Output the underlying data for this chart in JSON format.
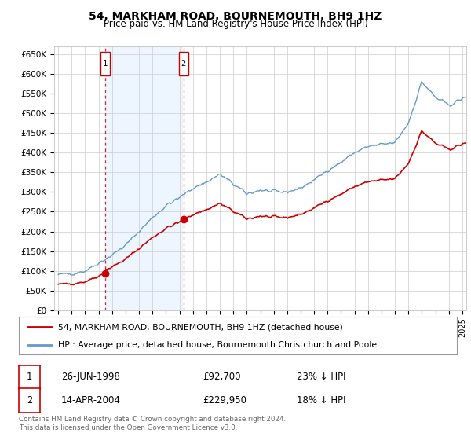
{
  "title": "54, MARKHAM ROAD, BOURNEMOUTH, BH9 1HZ",
  "subtitle": "Price paid vs. HM Land Registry's House Price Index (HPI)",
  "ylabel_ticks": [
    "£0",
    "£50K",
    "£100K",
    "£150K",
    "£200K",
    "£250K",
    "£300K",
    "£350K",
    "£400K",
    "£450K",
    "£500K",
    "£550K",
    "£600K",
    "£650K"
  ],
  "ytick_values": [
    0,
    50000,
    100000,
    150000,
    200000,
    250000,
    300000,
    350000,
    400000,
    450000,
    500000,
    550000,
    600000,
    650000
  ],
  "ylim": [
    0,
    670000
  ],
  "x_start_year": 1995,
  "x_end_year": 2025,
  "sale1_date": 1998.49,
  "sale1_price": 92700,
  "sale1_label": "1",
  "sale2_date": 2004.29,
  "sale2_price": 229950,
  "sale2_label": "2",
  "legend_line1": "54, MARKHAM ROAD, BOURNEMOUTH, BH9 1HZ (detached house)",
  "legend_line2": "HPI: Average price, detached house, Bournemouth Christchurch and Poole",
  "table_row1_num": "1",
  "table_row1_date": "26-JUN-1998",
  "table_row1_price": "£92,700",
  "table_row1_hpi": "23% ↓ HPI",
  "table_row2_num": "2",
  "table_row2_date": "14-APR-2004",
  "table_row2_price": "£229,950",
  "table_row2_hpi": "18% ↓ HPI",
  "footer": "Contains HM Land Registry data © Crown copyright and database right 2024.\nThis data is licensed under the Open Government Licence v3.0.",
  "color_red": "#cc0000",
  "color_blue": "#6699cc",
  "color_shade": "#ddeeff",
  "bg_color": "#ffffff",
  "grid_color": "#cccccc"
}
